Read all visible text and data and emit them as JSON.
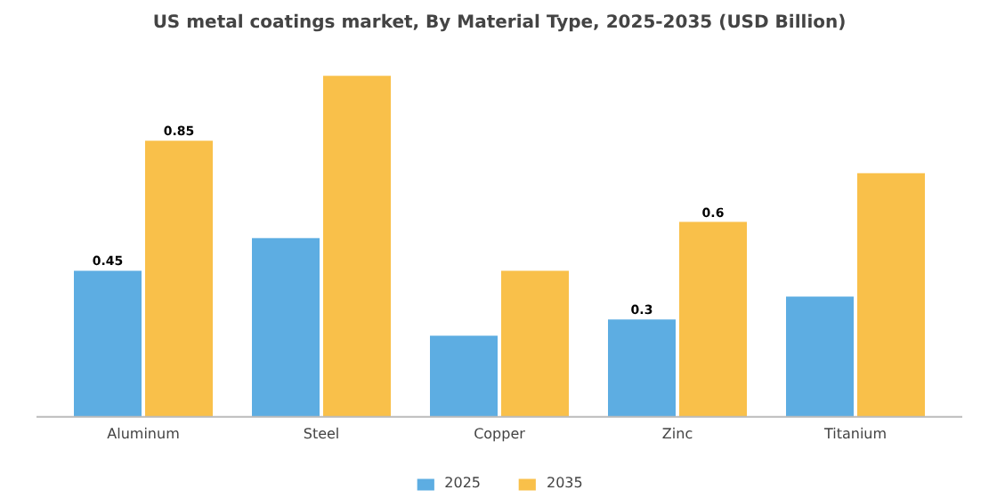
{
  "chart_data": {
    "type": "bar",
    "title": "US metal coatings market, By Material Type, 2025-2035 (USD Billion)",
    "categories": [
      "Aluminum",
      "Steel",
      "Copper",
      "Zinc",
      "Titanium"
    ],
    "series": [
      {
        "name": "2025",
        "color": "#5dade2",
        "values": [
          0.45,
          0.55,
          0.25,
          0.3,
          0.37
        ],
        "value_labels": [
          "0.45",
          null,
          null,
          "0.3",
          null
        ]
      },
      {
        "name": "2035",
        "color": "#f9c04a",
        "values": [
          0.85,
          1.05,
          0.45,
          0.6,
          0.75
        ],
        "value_labels": [
          "0.85",
          null,
          null,
          "0.6",
          null
        ]
      }
    ],
    "legend": "bottom"
  }
}
